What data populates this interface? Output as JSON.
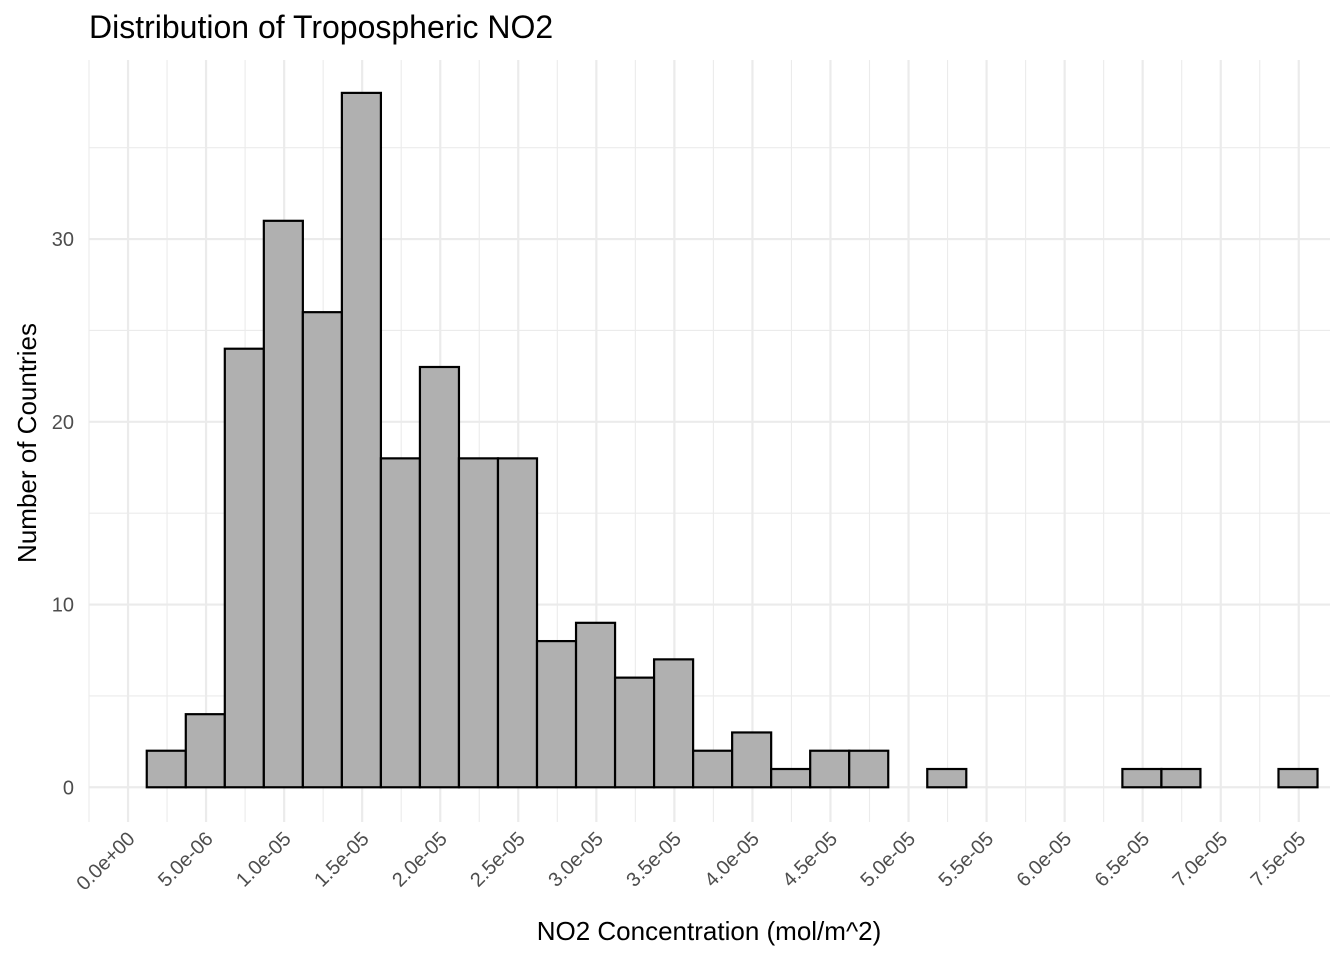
{
  "chart_data": {
    "type": "bar",
    "subtype": "histogram",
    "title": "Distribution of Tropospheric NO2",
    "xlabel": "NO2 Concentration (mol/m^2)",
    "ylabel": "Number of Countries",
    "xlim": [
      -2.5e-06,
      7.7e-05
    ],
    "ylim": [
      -1.9,
      39.8
    ],
    "x_ticks": [
      {
        "value": 0.0,
        "label": "0.0e+00"
      },
      {
        "value": 5e-06,
        "label": "5.0e-06"
      },
      {
        "value": 1e-05,
        "label": "1.0e-05"
      },
      {
        "value": 1.5e-05,
        "label": "1.5e-05"
      },
      {
        "value": 2e-05,
        "label": "2.0e-05"
      },
      {
        "value": 2.5e-05,
        "label": "2.5e-05"
      },
      {
        "value": 3e-05,
        "label": "3.0e-05"
      },
      {
        "value": 3.5e-05,
        "label": "3.5e-05"
      },
      {
        "value": 4e-05,
        "label": "4.0e-05"
      },
      {
        "value": 4.5e-05,
        "label": "4.5e-05"
      },
      {
        "value": 5e-05,
        "label": "5.0e-05"
      },
      {
        "value": 5.5e-05,
        "label": "5.5e-05"
      },
      {
        "value": 6e-05,
        "label": "6.0e-05"
      },
      {
        "value": 6.5e-05,
        "label": "6.5e-05"
      },
      {
        "value": 7e-05,
        "label": "7.0e-05"
      },
      {
        "value": 7.5e-05,
        "label": "7.5e-05"
      }
    ],
    "y_ticks": [
      {
        "value": 0,
        "label": "0"
      },
      {
        "value": 10,
        "label": "10"
      },
      {
        "value": 20,
        "label": "20"
      },
      {
        "value": 30,
        "label": "30"
      }
    ],
    "bin_start": 1.2e-06,
    "bin_width": 2.5e-06,
    "counts": [
      2,
      4,
      24,
      31,
      26,
      38,
      18,
      23,
      18,
      18,
      8,
      9,
      6,
      7,
      2,
      3,
      1,
      2,
      2,
      0,
      1,
      0,
      0,
      0,
      0,
      1,
      1,
      0,
      0,
      1
    ],
    "grid": true,
    "legend": "none",
    "bar_fill": "#b0b0b0",
    "bar_outline": "#000000",
    "grid_color": "#ebebeb"
  }
}
